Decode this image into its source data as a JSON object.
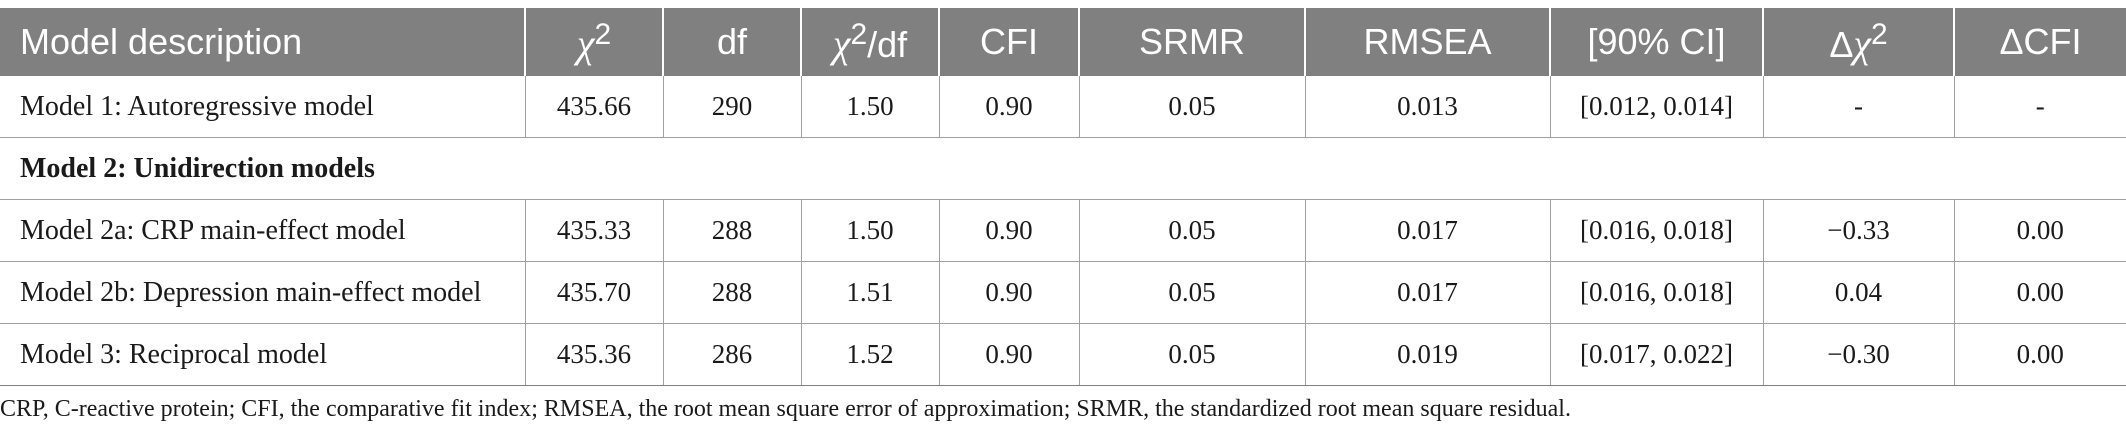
{
  "table": {
    "headers": {
      "model_description": "Model description",
      "chi2": "χ",
      "chi2_sup": "2",
      "df": "df",
      "chi2df_chi": "χ",
      "chi2df_sup": "2",
      "chi2df_rest": "/df",
      "cfi": "CFI",
      "srmr": "SRMR",
      "rmsea": "RMSEA",
      "ci": "[90% CI]",
      "delta_chi2_delta": "Δ",
      "delta_chi2_chi": "χ",
      "delta_chi2_sup": "2",
      "delta_cfi": "ΔCFI"
    },
    "rows": [
      {
        "model": "Model 1: Autoregressive model",
        "chi2": "435.66",
        "df": "290",
        "chi2df": "1.50",
        "cfi": "0.90",
        "srmr": "0.05",
        "rmsea": "0.013",
        "ci": "[0.012, 0.014]",
        "delta_chi2": "-",
        "delta_cfi": "-"
      },
      {
        "section": "Model 2: Unidirection models"
      },
      {
        "model": "Model 2a: CRP main-effect model",
        "chi2": "435.33",
        "df": "288",
        "chi2df": "1.50",
        "cfi": "0.90",
        "srmr": "0.05",
        "rmsea": "0.017",
        "ci": "[0.016, 0.018]",
        "delta_chi2": "−0.33",
        "delta_cfi": "0.00"
      },
      {
        "model": "Model 2b: Depression main-effect model",
        "chi2": "435.70",
        "df": "288",
        "chi2df": "1.51",
        "cfi": "0.90",
        "srmr": "0.05",
        "rmsea": "0.017",
        "ci": "[0.016, 0.018]",
        "delta_chi2": "0.04",
        "delta_cfi": "0.00"
      },
      {
        "model": "Model 3: Reciprocal model",
        "chi2": "435.36",
        "df": "286",
        "chi2df": "1.52",
        "cfi": "0.90",
        "srmr": "0.05",
        "rmsea": "0.019",
        "ci": "[0.017, 0.022]",
        "delta_chi2": "−0.30",
        "delta_cfi": "0.00"
      }
    ]
  },
  "footnote": "CRP, C-reactive protein; CFI, the comparative fit index; RMSEA, the root mean square error of approximation; SRMR, the standardized root mean square residual."
}
